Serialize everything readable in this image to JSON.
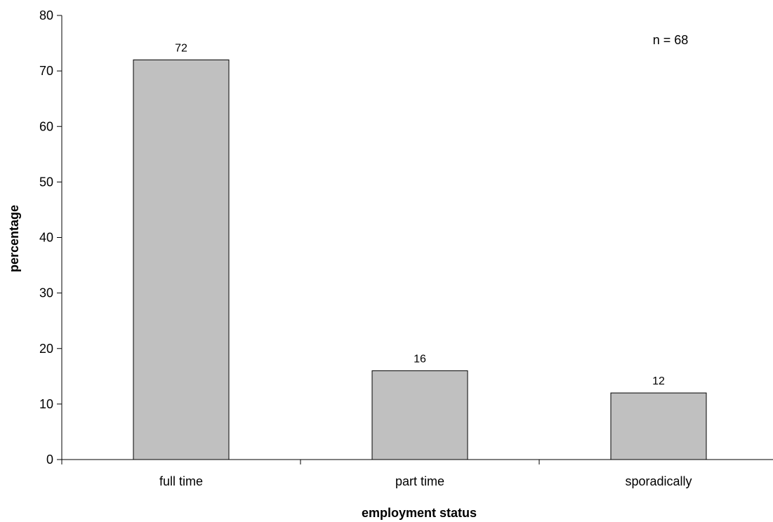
{
  "chart_data": {
    "type": "bar",
    "title": "",
    "xlabel": "employment status",
    "ylabel": "percentage",
    "categories": [
      "full time",
      "part time",
      "sporadically"
    ],
    "values": [
      72,
      16,
      12
    ],
    "data_labels": [
      "72",
      "16",
      "12"
    ],
    "ylim": [
      0,
      80
    ],
    "yticks": [
      0,
      10,
      20,
      30,
      40,
      50,
      60,
      70,
      80
    ],
    "grid": false,
    "legend": "none",
    "annotation": "n = 68",
    "bar_color": "#c0c0c0",
    "bar_edge_color": "#000000"
  }
}
